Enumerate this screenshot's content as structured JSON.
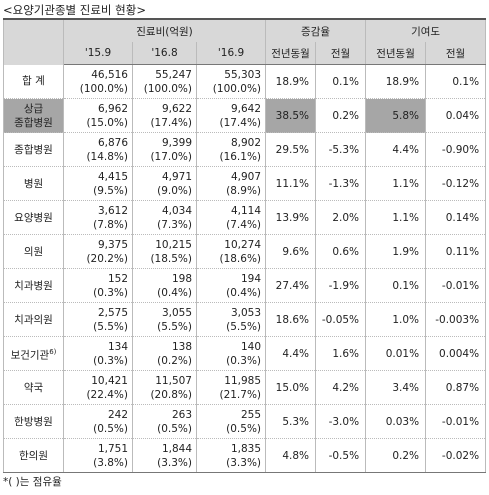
{
  "title": "<요양기관종별 진료비 현황>",
  "table": {
    "header_groups": [
      "진료비(억원)",
      "증감율",
      "기여도"
    ],
    "subheaders": [
      "'15.9",
      "'16.8",
      "'16.9",
      "전년동월",
      "전월",
      "전년동월",
      "전월"
    ],
    "rows": [
      {
        "label": "합 계",
        "costs": [
          {
            "value": "46,516",
            "share": "(100.0%)"
          },
          {
            "value": "55,247",
            "share": "(100.0%)"
          },
          {
            "value": "55,303",
            "share": "(100.0%)"
          }
        ],
        "rates": [
          "18.9%",
          "0.1%",
          "18.9%",
          "0.1%"
        ]
      },
      {
        "label": "상급\n종합병원",
        "costs": [
          {
            "value": "6,962",
            "share": "(15.0%)"
          },
          {
            "value": "9,622",
            "share": "(17.4%)"
          },
          {
            "value": "9,642",
            "share": "(17.4%)"
          }
        ],
        "rates": [
          "38.5%",
          "0.2%",
          "5.8%",
          "0.04%"
        ]
      },
      {
        "label": "종합병원",
        "costs": [
          {
            "value": "6,876",
            "share": "(14.8%)"
          },
          {
            "value": "9,399",
            "share": "(17.0%)"
          },
          {
            "value": "8,902",
            "share": "(16.1%)"
          }
        ],
        "rates": [
          "29.5%",
          "-5.3%",
          "4.4%",
          "-0.90%"
        ]
      },
      {
        "label": "병원",
        "costs": [
          {
            "value": "4,415",
            "share": "(9.5%)"
          },
          {
            "value": "4,971",
            "share": "(9.0%)"
          },
          {
            "value": "4,907",
            "share": "(8.9%)"
          }
        ],
        "rates": [
          "11.1%",
          "-1.3%",
          "1.1%",
          "-0.12%"
        ]
      },
      {
        "label": "요양병원",
        "costs": [
          {
            "value": "3,612",
            "share": "(7.8%)"
          },
          {
            "value": "4,034",
            "share": "(7.3%)"
          },
          {
            "value": "4,114",
            "share": "(7.4%)"
          }
        ],
        "rates": [
          "13.9%",
          "2.0%",
          "1.1%",
          "0.14%"
        ]
      },
      {
        "label": "의원",
        "costs": [
          {
            "value": "9,375",
            "share": "(20.2%)"
          },
          {
            "value": "10,215",
            "share": "(18.5%)"
          },
          {
            "value": "10,274",
            "share": "(18.6%)"
          }
        ],
        "rates": [
          "9.6%",
          "0.6%",
          "1.9%",
          "0.11%"
        ]
      },
      {
        "label": "치과병원",
        "costs": [
          {
            "value": "152",
            "share": "(0.3%)"
          },
          {
            "value": "198",
            "share": "(0.4%)"
          },
          {
            "value": "194",
            "share": "(0.4%)"
          }
        ],
        "rates": [
          "27.4%",
          "-1.9%",
          "0.1%",
          "-0.01%"
        ]
      },
      {
        "label": "치과의원",
        "costs": [
          {
            "value": "2,575",
            "share": "(5.5%)"
          },
          {
            "value": "3,055",
            "share": "(5.5%)"
          },
          {
            "value": "3,053",
            "share": "(5.5%)"
          }
        ],
        "rates": [
          "18.6%",
          "-0.05%",
          "1.0%",
          "-0.003%"
        ]
      },
      {
        "label": "보건기관",
        "note": "6)",
        "costs": [
          {
            "value": "134",
            "share": "(0.3%)"
          },
          {
            "value": "138",
            "share": "(0.2%)"
          },
          {
            "value": "140",
            "share": "(0.3%)"
          }
        ],
        "rates": [
          "4.4%",
          "1.6%",
          "0.01%",
          "0.004%"
        ]
      },
      {
        "label": "약국",
        "costs": [
          {
            "value": "10,421",
            "share": "(22.4%)"
          },
          {
            "value": "11,507",
            "share": "(20.8%)"
          },
          {
            "value": "11,985",
            "share": "(21.7%)"
          }
        ],
        "rates": [
          "15.0%",
          "4.2%",
          "3.4%",
          "0.87%"
        ]
      },
      {
        "label": "한방병원",
        "costs": [
          {
            "value": "242",
            "share": "(0.5%)"
          },
          {
            "value": "263",
            "share": "(0.5%)"
          },
          {
            "value": "255",
            "share": "(0.5%)"
          }
        ],
        "rates": [
          "5.3%",
          "-3.0%",
          "0.03%",
          "-0.01%"
        ]
      },
      {
        "label": "한의원",
        "costs": [
          {
            "value": "1,751",
            "share": "(3.8%)"
          },
          {
            "value": "1,844",
            "share": "(3.3%)"
          },
          {
            "value": "1,835",
            "share": "(3.3%)"
          }
        ],
        "rates": [
          "4.8%",
          "-0.5%",
          "0.2%",
          "-0.02%"
        ]
      }
    ]
  },
  "footnote": "*(   )는 점유율"
}
